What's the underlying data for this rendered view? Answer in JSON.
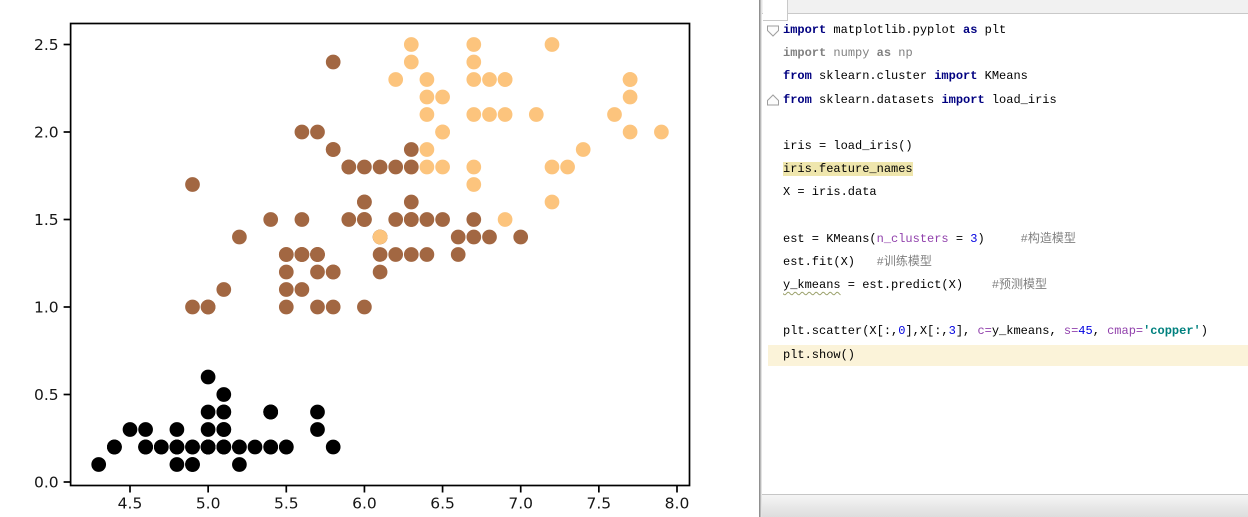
{
  "chart_data": {
    "type": "scatter",
    "title": "",
    "xlabel": "",
    "ylabel": "",
    "x_ticks": [
      4.5,
      5.0,
      5.5,
      6.0,
      6.5,
      7.0,
      7.5,
      8.0
    ],
    "y_ticks": [
      0.0,
      0.5,
      1.0,
      1.5,
      2.0,
      2.5
    ],
    "x_tick_labels": [
      "4.5",
      "5.0",
      "5.5",
      "6.0",
      "6.5",
      "7.0",
      "7.5",
      "8.0"
    ],
    "y_tick_labels": [
      "0.0",
      "0.5",
      "1.0",
      "1.5",
      "2.0",
      "2.5"
    ],
    "xlim": [
      4.12,
      8.08
    ],
    "ylim": [
      -0.02,
      2.62
    ],
    "grid": false,
    "legend": null,
    "marker_size_s": 45,
    "cmap": "copper",
    "cluster_colors": [
      "#000000",
      "#A26742",
      "#FCC47D"
    ],
    "points": [
      [
        5.1,
        0.2,
        0
      ],
      [
        4.9,
        0.2,
        0
      ],
      [
        4.7,
        0.2,
        0
      ],
      [
        4.6,
        0.2,
        0
      ],
      [
        5.0,
        0.2,
        0
      ],
      [
        5.4,
        0.4,
        0
      ],
      [
        4.6,
        0.3,
        0
      ],
      [
        5.0,
        0.2,
        0
      ],
      [
        4.4,
        0.2,
        0
      ],
      [
        4.9,
        0.1,
        0
      ],
      [
        5.4,
        0.2,
        0
      ],
      [
        4.8,
        0.2,
        0
      ],
      [
        4.8,
        0.1,
        0
      ],
      [
        4.3,
        0.1,
        0
      ],
      [
        5.8,
        0.2,
        0
      ],
      [
        5.7,
        0.4,
        0
      ],
      [
        5.4,
        0.4,
        0
      ],
      [
        5.1,
        0.3,
        0
      ],
      [
        5.7,
        0.3,
        0
      ],
      [
        5.1,
        0.3,
        0
      ],
      [
        5.4,
        0.2,
        0
      ],
      [
        5.1,
        0.4,
        0
      ],
      [
        4.6,
        0.2,
        0
      ],
      [
        5.1,
        0.5,
        0
      ],
      [
        4.8,
        0.2,
        0
      ],
      [
        5.0,
        0.2,
        0
      ],
      [
        5.0,
        0.4,
        0
      ],
      [
        5.2,
        0.2,
        0
      ],
      [
        5.2,
        0.2,
        0
      ],
      [
        4.7,
        0.2,
        0
      ],
      [
        4.8,
        0.2,
        0
      ],
      [
        5.4,
        0.4,
        0
      ],
      [
        5.2,
        0.1,
        0
      ],
      [
        5.5,
        0.2,
        0
      ],
      [
        4.9,
        0.2,
        0
      ],
      [
        5.0,
        0.2,
        0
      ],
      [
        5.5,
        0.2,
        0
      ],
      [
        4.9,
        0.1,
        0
      ],
      [
        4.4,
        0.2,
        0
      ],
      [
        5.1,
        0.2,
        0
      ],
      [
        5.0,
        0.3,
        0
      ],
      [
        4.5,
        0.3,
        0
      ],
      [
        4.4,
        0.2,
        0
      ],
      [
        5.0,
        0.6,
        0
      ],
      [
        5.1,
        0.4,
        0
      ],
      [
        4.8,
        0.3,
        0
      ],
      [
        5.1,
        0.2,
        0
      ],
      [
        4.6,
        0.2,
        0
      ],
      [
        5.3,
        0.2,
        0
      ],
      [
        5.0,
        0.2,
        0
      ],
      [
        7.0,
        1.4,
        1
      ],
      [
        6.4,
        1.5,
        1
      ],
      [
        6.9,
        1.5,
        2
      ],
      [
        5.5,
        1.3,
        1
      ],
      [
        6.5,
        1.5,
        1
      ],
      [
        5.7,
        1.3,
        1
      ],
      [
        6.3,
        1.6,
        1
      ],
      [
        4.9,
        1.0,
        1
      ],
      [
        6.6,
        1.3,
        1
      ],
      [
        5.2,
        1.4,
        1
      ],
      [
        5.0,
        1.0,
        1
      ],
      [
        5.9,
        1.5,
        1
      ],
      [
        6.0,
        1.0,
        1
      ],
      [
        6.1,
        1.4,
        1
      ],
      [
        5.6,
        1.3,
        1
      ],
      [
        6.7,
        1.4,
        1
      ],
      [
        5.6,
        1.5,
        1
      ],
      [
        5.8,
        1.0,
        1
      ],
      [
        6.2,
        1.5,
        1
      ],
      [
        5.6,
        1.1,
        1
      ],
      [
        5.9,
        1.8,
        1
      ],
      [
        6.1,
        1.3,
        1
      ],
      [
        6.3,
        1.5,
        1
      ],
      [
        6.1,
        1.2,
        1
      ],
      [
        6.4,
        1.3,
        1
      ],
      [
        6.6,
        1.4,
        1
      ],
      [
        6.8,
        1.4,
        1
      ],
      [
        6.7,
        1.7,
        2
      ],
      [
        6.0,
        1.5,
        1
      ],
      [
        5.7,
        1.0,
        1
      ],
      [
        5.5,
        1.1,
        1
      ],
      [
        5.5,
        1.0,
        1
      ],
      [
        5.8,
        1.2,
        1
      ],
      [
        6.0,
        1.6,
        1
      ],
      [
        5.4,
        1.5,
        1
      ],
      [
        6.0,
        1.6,
        1
      ],
      [
        6.7,
        1.5,
        1
      ],
      [
        6.3,
        1.3,
        1
      ],
      [
        5.6,
        1.3,
        1
      ],
      [
        5.5,
        1.3,
        1
      ],
      [
        5.5,
        1.2,
        1
      ],
      [
        6.1,
        1.4,
        1
      ],
      [
        5.8,
        1.2,
        1
      ],
      [
        5.0,
        1.0,
        1
      ],
      [
        5.6,
        1.3,
        1
      ],
      [
        5.7,
        1.2,
        1
      ],
      [
        5.7,
        1.3,
        1
      ],
      [
        6.2,
        1.3,
        1
      ],
      [
        5.1,
        1.1,
        1
      ],
      [
        5.7,
        1.3,
        1
      ],
      [
        6.3,
        2.5,
        2
      ],
      [
        5.8,
        1.9,
        1
      ],
      [
        7.1,
        2.1,
        2
      ],
      [
        6.3,
        1.8,
        2
      ],
      [
        6.5,
        2.2,
        2
      ],
      [
        7.6,
        2.1,
        2
      ],
      [
        4.9,
        1.7,
        1
      ],
      [
        7.3,
        1.8,
        2
      ],
      [
        6.7,
        1.8,
        2
      ],
      [
        7.2,
        2.5,
        2
      ],
      [
        6.5,
        2.0,
        2
      ],
      [
        6.4,
        1.9,
        2
      ],
      [
        6.8,
        2.1,
        2
      ],
      [
        5.7,
        2.0,
        1
      ],
      [
        5.8,
        2.4,
        1
      ],
      [
        6.4,
        2.3,
        2
      ],
      [
        6.5,
        1.8,
        2
      ],
      [
        7.7,
        2.2,
        2
      ],
      [
        7.7,
        2.3,
        2
      ],
      [
        6.0,
        1.5,
        1
      ],
      [
        6.9,
        2.3,
        2
      ],
      [
        5.6,
        2.0,
        1
      ],
      [
        7.7,
        2.0,
        2
      ],
      [
        6.3,
        1.8,
        1
      ],
      [
        6.7,
        2.1,
        2
      ],
      [
        7.2,
        1.8,
        2
      ],
      [
        6.2,
        1.8,
        1
      ],
      [
        6.1,
        1.8,
        1
      ],
      [
        6.4,
        2.1,
        2
      ],
      [
        7.2,
        1.6,
        2
      ],
      [
        7.4,
        1.9,
        2
      ],
      [
        7.9,
        2.0,
        2
      ],
      [
        6.4,
        2.2,
        2
      ],
      [
        6.3,
        1.5,
        1
      ],
      [
        6.1,
        1.4,
        2
      ],
      [
        7.7,
        2.3,
        2
      ],
      [
        6.3,
        2.4,
        2
      ],
      [
        6.4,
        1.8,
        2
      ],
      [
        6.0,
        1.8,
        1
      ],
      [
        6.9,
        2.1,
        2
      ],
      [
        6.7,
        2.4,
        2
      ],
      [
        6.9,
        2.3,
        2
      ],
      [
        5.8,
        1.9,
        1
      ],
      [
        6.8,
        2.3,
        2
      ],
      [
        6.7,
        2.5,
        2
      ],
      [
        6.7,
        2.3,
        2
      ],
      [
        6.3,
        1.9,
        1
      ],
      [
        6.5,
        2.0,
        2
      ],
      [
        6.2,
        2.3,
        2
      ],
      [
        5.9,
        1.8,
        1
      ]
    ]
  },
  "editor": {
    "token_colors": {
      "plain": "#000000",
      "keyword": "#000080",
      "unused_gray": "#808080",
      "number": "#0000E0",
      "named_param": "#9141AC",
      "string": "#00807E",
      "comment": "#808080"
    },
    "highlight_colors": {
      "selection": "#EFE6AD",
      "caret_line": "#FBF3D9"
    },
    "lines": [
      {
        "seg": [
          [
            "kw",
            "import"
          ],
          [
            "pl",
            " matplotlib.pyplot "
          ],
          [
            "kw",
            "as"
          ],
          [
            "pl",
            " plt"
          ]
        ]
      },
      {
        "seg": [
          [
            "kwg",
            "import"
          ],
          [
            "gr",
            " numpy "
          ],
          [
            "kwg",
            "as"
          ],
          [
            "gr",
            " np"
          ]
        ]
      },
      {
        "seg": [
          [
            "kw",
            "from"
          ],
          [
            "pl",
            " sklearn.cluster "
          ],
          [
            "kw",
            "import"
          ],
          [
            "pl",
            " KMeans"
          ]
        ]
      },
      {
        "seg": [
          [
            "kw",
            "from"
          ],
          [
            "pl",
            " sklearn.datasets "
          ],
          [
            "kw",
            "import"
          ],
          [
            "pl",
            " load_iris"
          ]
        ]
      },
      {
        "seg": []
      },
      {
        "seg": [
          [
            "pl",
            "iris = load_iris()"
          ]
        ]
      },
      {
        "highlight": "sel",
        "seg": [
          [
            "pl",
            "iris.feature_names"
          ]
        ]
      },
      {
        "seg": [
          [
            "pl",
            "X = iris.data"
          ]
        ]
      },
      {
        "seg": []
      },
      {
        "seg": [
          [
            "pl",
            "est = KMeans("
          ],
          [
            "pa",
            "n_clusters"
          ],
          [
            "pl",
            " = "
          ],
          [
            "nu",
            "3"
          ],
          [
            "pl",
            ")     "
          ],
          [
            "co",
            "#构造模型"
          ]
        ]
      },
      {
        "seg": [
          [
            "pl",
            "est.fit(X)   "
          ],
          [
            "co",
            "#训练模型"
          ]
        ]
      },
      {
        "seg": [
          [
            "ty",
            "y_kmeans"
          ],
          [
            "pl",
            " = est.predict(X)    "
          ],
          [
            "co",
            "#预测模型"
          ]
        ]
      },
      {
        "seg": []
      },
      {
        "seg": [
          [
            "pl",
            "plt.scatter(X[:,"
          ],
          [
            "nu",
            "0"
          ],
          [
            "pl",
            "],X[:,"
          ],
          [
            "nu",
            "3"
          ],
          [
            "pl",
            "], "
          ],
          [
            "pa",
            "c="
          ],
          [
            "pl",
            "y_kmeans, "
          ],
          [
            "pa",
            "s="
          ],
          [
            "nu",
            "45"
          ],
          [
            "pl",
            ", "
          ],
          [
            "pa",
            "cmap="
          ],
          [
            "st",
            "'copper'"
          ],
          [
            "pl",
            ")"
          ]
        ]
      },
      {
        "highlight": "caret",
        "seg": [
          [
            "pl",
            "plt.show()"
          ]
        ]
      }
    ]
  }
}
